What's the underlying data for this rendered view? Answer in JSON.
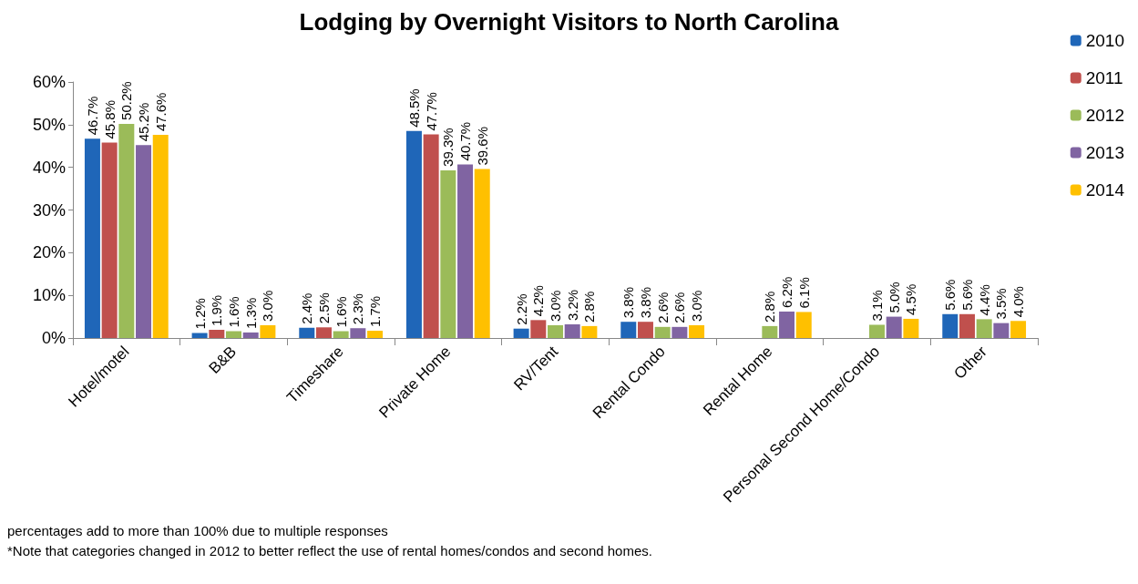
{
  "chart_data": {
    "type": "bar",
    "title": "Lodging by Overnight Visitors to North Carolina",
    "categories": [
      "Hotel/motel",
      "B&B",
      "Timeshare",
      "Private Home",
      "RV/Tent",
      "Rental Condo",
      "Rental Home",
      "Personal Second Home/Condo",
      "Other"
    ],
    "series": [
      {
        "name": "2010",
        "color": "#1f66b8",
        "values": [
          46.7,
          1.2,
          2.4,
          48.5,
          2.2,
          3.8,
          null,
          null,
          5.6
        ],
        "value_labels": [
          "46.7%",
          "1.2%",
          "2.4%",
          "48.5%",
          "2.2%",
          "3.8%",
          null,
          null,
          "5.6%"
        ]
      },
      {
        "name": "2011",
        "color": "#c0504d",
        "values": [
          45.8,
          1.9,
          2.5,
          47.7,
          4.2,
          3.8,
          null,
          null,
          5.6
        ],
        "value_labels": [
          "45.8%",
          "1.9%",
          "2.5%",
          "47.7%",
          "4.2%",
          "3.8%",
          null,
          null,
          "5.6%"
        ]
      },
      {
        "name": "2012",
        "color": "#9bbb59",
        "values": [
          50.2,
          1.6,
          1.6,
          39.3,
          3.0,
          2.6,
          2.8,
          3.1,
          4.4
        ],
        "value_labels": [
          "50.2%",
          "1.6%",
          "1.6%",
          "39.3%",
          "3.0%",
          "2.6%",
          "2.8%",
          "3.1%",
          "4.4%"
        ]
      },
      {
        "name": "2013",
        "color": "#8064a2",
        "values": [
          45.2,
          1.3,
          2.3,
          40.7,
          3.2,
          2.6,
          6.2,
          5.0,
          3.5
        ],
        "value_labels": [
          "45.2%",
          "1.3%",
          "2.3%",
          "40.7%",
          "3.2%",
          "2.6%",
          "6.2%",
          "5.0%",
          "3.5%"
        ]
      },
      {
        "name": "2014",
        "color": "#ffc000",
        "values": [
          47.6,
          3.0,
          1.7,
          39.6,
          2.8,
          3.0,
          6.1,
          4.5,
          4.0
        ],
        "value_labels": [
          "47.6%",
          "3.0%",
          "1.7%",
          "39.6%",
          "2.8%",
          "3.0%",
          "6.1%",
          "4.5%",
          "4.0%"
        ]
      }
    ],
    "ylim": [
      0,
      60
    ],
    "yticks": [
      {
        "value": 0,
        "label": "0%"
      },
      {
        "value": 10,
        "label": "10%"
      },
      {
        "value": 20,
        "label": "20%"
      },
      {
        "value": 30,
        "label": "30%"
      },
      {
        "value": 40,
        "label": "40%"
      },
      {
        "value": 50,
        "label": "50%"
      },
      {
        "value": 60,
        "label": "60%"
      }
    ],
    "grid": false,
    "legend": "top right",
    "annotations": [
      "percentages add to more than 100% due to multiple responses",
      "*Note that categories changed in 2012 to better reflect the use of rental homes/condos and second homes."
    ]
  }
}
